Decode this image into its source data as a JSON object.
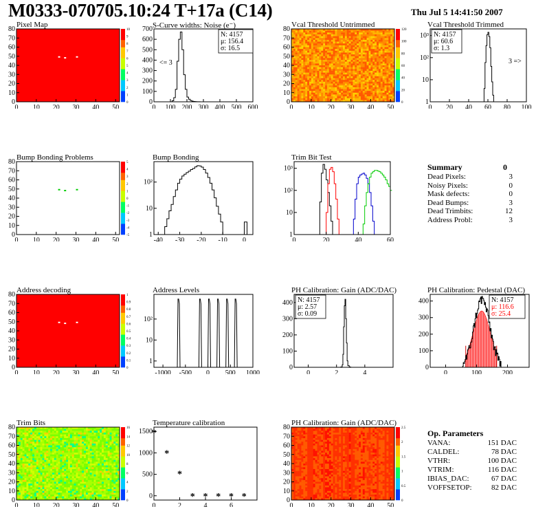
{
  "header": {
    "title": "M0333-070705.10:24 T+17a (C14)",
    "date": "Thu Jul  5 14:41:50 2007"
  },
  "colors": {
    "hist": "#000000",
    "red": "#ff0000",
    "blue": "#0000cc",
    "green": "#00cc00",
    "dark_red": "#cc0000"
  },
  "summary": {
    "title": "Summary",
    "value": "0",
    "rows": [
      {
        "label": "Dead Pixels:",
        "value": "3"
      },
      {
        "label": "Noisy Pixels:",
        "value": "0"
      },
      {
        "label": "Mask defects:",
        "value": "0"
      },
      {
        "label": "Dead Bumps:",
        "value": "3"
      },
      {
        "label": "Dead Trimbits:",
        "value": "12"
      },
      {
        "label": "Address Probl:",
        "value": "3"
      }
    ]
  },
  "op_params": {
    "title": "Op. Parameters",
    "rows": [
      {
        "label": "VANA:",
        "value": "151 DAC"
      },
      {
        "label": "CALDEL:",
        "value": "78 DAC"
      },
      {
        "label": "VTHR:",
        "value": "100 DAC"
      },
      {
        "label": "VTRIM:",
        "value": "116 DAC"
      },
      {
        "label": "IBIAS_DAC:",
        "value": "67 DAC"
      },
      {
        "label": "VOFFSETOP:",
        "value": "82 DAC"
      }
    ]
  },
  "chart_data": [
    {
      "id": "pixel-map",
      "type": "heatmap",
      "title": "Pixel Map",
      "xlim": [
        0,
        52
      ],
      "ylim": [
        0,
        80
      ],
      "xticks": [
        "0",
        "10",
        "20",
        "30",
        "40",
        "50"
      ],
      "yticks": [
        "0",
        "10",
        "20",
        "30",
        "40",
        "50",
        "60",
        "70",
        "80"
      ],
      "zticks": [
        "0",
        "1",
        "2",
        "3",
        "4",
        "5",
        "6",
        "7",
        "8",
        "9",
        "10"
      ],
      "fill": "uniform-red",
      "marks": [
        [
          21,
          50
        ],
        [
          24,
          49
        ],
        [
          30,
          50
        ]
      ]
    },
    {
      "id": "scurve",
      "type": "line",
      "title": "S-Curve widths: Noise (e⁻)",
      "xlim": [
        0,
        600
      ],
      "ylim": [
        0,
        700
      ],
      "xticks": [
        "0",
        "100",
        "200",
        "300",
        "400",
        "500",
        "600"
      ],
      "yticks": [
        "0",
        "100",
        "200",
        "300",
        "400",
        "500",
        "600",
        "700"
      ],
      "stats": [
        "N: 4157",
        "μ: 156.4",
        "σ: 16.5"
      ],
      "annotation": "<= 3",
      "x": [
        100,
        110,
        120,
        130,
        140,
        150,
        160,
        170,
        180,
        190,
        200,
        210,
        220,
        230,
        240,
        250,
        260,
        270,
        280,
        290
      ],
      "y": [
        0,
        10,
        40,
        120,
        390,
        600,
        670,
        500,
        260,
        120,
        45,
        25,
        12,
        6,
        3,
        2,
        1,
        1,
        0,
        0
      ]
    },
    {
      "id": "vcal-untrimmed",
      "type": "heatmap",
      "title": "Vcal Threshold Untrimmed",
      "xlim": [
        0,
        52
      ],
      "ylim": [
        0,
        80
      ],
      "xticks": [
        "0",
        "10",
        "20",
        "30",
        "40",
        "50"
      ],
      "yticks": [
        "0",
        "10",
        "20",
        "30",
        "40",
        "50",
        "60",
        "70",
        "80"
      ],
      "zticks": [
        "0",
        "20",
        "40",
        "60",
        "80",
        "100",
        "120"
      ],
      "fill": "noisy-orange"
    },
    {
      "id": "vcal-trimmed",
      "type": "line",
      "title": "Vcal Threshold Trimmed",
      "log_y": true,
      "xlim": [
        0,
        100
      ],
      "ylim": [
        1,
        2000
      ],
      "xticks": [
        "0",
        "20",
        "40",
        "60",
        "80",
        "100"
      ],
      "yticks": [
        "1",
        "10",
        "10²",
        "10³"
      ],
      "stats": [
        "N: 4157",
        "μ: 60.6",
        "σ:  1.3"
      ],
      "annotation": "3 =>",
      "x": [
        54,
        56,
        57,
        58,
        59,
        60,
        61,
        62,
        63,
        64,
        65,
        66
      ],
      "y": [
        1,
        4,
        60,
        350,
        1100,
        1400,
        900,
        280,
        40,
        8,
        2,
        1
      ]
    },
    {
      "id": "bump-map",
      "type": "heatmap",
      "title": "Bump Bonding Problems",
      "xlim": [
        0,
        52
      ],
      "ylim": [
        0,
        80
      ],
      "xticks": [
        "0",
        "10",
        "20",
        "30",
        "40",
        "50"
      ],
      "yticks": [
        "0",
        "10",
        "20",
        "30",
        "40",
        "50",
        "60",
        "70",
        "80"
      ],
      "zticks": [
        "-5",
        "-4",
        "-3",
        "-2",
        "-1",
        "0",
        "1",
        "2",
        "3",
        "4",
        "5"
      ],
      "fill": "white",
      "marks": [
        [
          21,
          50
        ],
        [
          24,
          49
        ],
        [
          30,
          50
        ]
      ]
    },
    {
      "id": "bump-bonding",
      "type": "line",
      "title": "Bump Bonding",
      "log_y": true,
      "xlim": [
        -42,
        4
      ],
      "ylim": [
        1,
        600
      ],
      "xticks": [
        "-40",
        "-30",
        "-20",
        "-10",
        "0"
      ],
      "yticks": [
        "1",
        "10",
        "10²"
      ],
      "x": [
        -38,
        -37,
        -36,
        -35,
        -34,
        -33,
        -32,
        -31,
        -30,
        -29,
        -28,
        -27,
        -26,
        -25,
        -24,
        -23,
        -22,
        -21,
        -20,
        -19,
        -18,
        -17,
        -16,
        -15,
        -14,
        -13,
        -12,
        -11,
        -10,
        -9
      ],
      "y": [
        1,
        2,
        4,
        8,
        14,
        28,
        50,
        90,
        130,
        170,
        200,
        230,
        260,
        300,
        330,
        380,
        420,
        410,
        370,
        300,
        220,
        150,
        90,
        50,
        25,
        12,
        6,
        3,
        1,
        1
      ],
      "extra_bins": [
        [
          0,
          3
        ]
      ]
    },
    {
      "id": "trim-bit",
      "type": "line",
      "title": "Trim Bit Test",
      "log_y": true,
      "xlim": [
        0,
        60
      ],
      "ylim": [
        1,
        2000
      ],
      "xticks": [
        "0",
        "20",
        "40",
        "60"
      ],
      "yticks": [
        "1",
        "10",
        "10²",
        "10³"
      ],
      "series": [
        {
          "color": "#000000",
          "x": [
            15,
            16,
            17,
            18,
            19,
            20,
            21,
            22,
            23,
            24
          ],
          "y": [
            1,
            30,
            600,
            1500,
            900,
            300,
            80,
            20,
            4,
            1
          ]
        },
        {
          "color": "#ff0000",
          "x": [
            19,
            20,
            21,
            22,
            23,
            24,
            25,
            26,
            27,
            28
          ],
          "y": [
            1,
            10,
            200,
            900,
            1100,
            700,
            200,
            40,
            5,
            1
          ]
        },
        {
          "color": "#0000cc",
          "x": [
            36,
            37,
            38,
            39,
            40,
            41,
            42,
            43,
            44,
            45,
            46,
            47,
            48,
            49,
            50
          ],
          "y": [
            1,
            5,
            40,
            200,
            400,
            500,
            550,
            600,
            500,
            350,
            200,
            80,
            20,
            4,
            1
          ]
        },
        {
          "color": "#00cc00",
          "x": [
            42,
            43,
            44,
            45,
            46,
            47,
            48,
            49,
            50,
            51,
            52,
            53,
            54,
            55,
            56,
            57,
            58,
            59,
            60
          ],
          "y": [
            1,
            3,
            20,
            80,
            200,
            400,
            600,
            700,
            800,
            800,
            750,
            700,
            600,
            500,
            400,
            300,
            200,
            150,
            100
          ]
        }
      ]
    },
    {
      "id": "address-map",
      "type": "heatmap",
      "title": "Address decoding",
      "xlim": [
        0,
        52
      ],
      "ylim": [
        0,
        80
      ],
      "xticks": [
        "0",
        "10",
        "20",
        "30",
        "40",
        "50"
      ],
      "yticks": [
        "0",
        "10",
        "20",
        "30",
        "40",
        "50",
        "60",
        "70",
        "80"
      ],
      "zticks": [
        "0",
        "0.1",
        "0.2",
        "0.3",
        "0.4",
        "0.5",
        "0.6",
        "0.7",
        "0.8",
        "0.9",
        "1"
      ],
      "fill": "uniform-red",
      "marks": [
        [
          21,
          50
        ],
        [
          24,
          49
        ],
        [
          30,
          50
        ]
      ]
    },
    {
      "id": "address-levels",
      "type": "line",
      "title": "Address Levels",
      "log_y": true,
      "xlim": [
        -1200,
        1000
      ],
      "ylim": [
        0.5,
        1500
      ],
      "xticks": [
        "-1000",
        "-500",
        "0",
        "500",
        "1000"
      ],
      "yticks": [
        "1",
        "10",
        "10²"
      ],
      "peaks": [
        -650,
        -170,
        30,
        230,
        430,
        620
      ],
      "peak_value": 900
    },
    {
      "id": "ph-gain",
      "type": "line",
      "title": "PH Calibration: Gain (ADC/DAC)",
      "xlim": [
        -1,
        6
      ],
      "ylim": [
        0,
        450
      ],
      "xticks": [
        "0",
        "2",
        "4"
      ],
      "yticks": [
        "0",
        "100",
        "200",
        "300",
        "400"
      ],
      "stats": [
        "N: 4157",
        "μ: 2.57",
        "σ: 0.09"
      ],
      "x": [
        2.2,
        2.3,
        2.4,
        2.45,
        2.5,
        2.55,
        2.6,
        2.65,
        2.7,
        2.75,
        2.8,
        2.9,
        3.0
      ],
      "y": [
        0,
        2,
        15,
        80,
        250,
        380,
        420,
        300,
        150,
        40,
        10,
        2,
        0
      ]
    },
    {
      "id": "ph-pedestal",
      "type": "line",
      "title": "PH Calibration: Pedestal (DAC)",
      "xlim": [
        -50,
        270
      ],
      "ylim": [
        0,
        440
      ],
      "xticks": [
        "0",
        "100",
        "200"
      ],
      "yticks": [
        "0",
        "100",
        "200",
        "300",
        "400"
      ],
      "stats": [
        "N: 4157",
        "μ: 116.6",
        "σ: 25.4"
      ],
      "fit_range": [
        65,
        165
      ]
    },
    {
      "id": "trim-bits-map",
      "type": "heatmap",
      "title": "Trim Bits",
      "xlim": [
        0,
        52
      ],
      "ylim": [
        0,
        80
      ],
      "xticks": [
        "0",
        "10",
        "20",
        "30",
        "40",
        "50"
      ],
      "yticks": [
        "0",
        "10",
        "20",
        "30",
        "40",
        "50",
        "60",
        "70",
        "80"
      ],
      "zticks": [
        "0",
        "2",
        "4",
        "6",
        "8",
        "10",
        "12",
        "14",
        "16"
      ],
      "fill": "noisy-green"
    },
    {
      "id": "temp-cal",
      "type": "scatter",
      "title": "Temperature calibration",
      "xlim": [
        0,
        8
      ],
      "ylim": [
        -100,
        1600
      ],
      "xticks": [
        "0",
        "2",
        "4",
        "6"
      ],
      "yticks": [
        "0",
        "500",
        "1000",
        "1500"
      ],
      "x": [
        0,
        1,
        2,
        3,
        4,
        5,
        6,
        7
      ],
      "y": [
        1480,
        1000,
        520,
        0,
        0,
        0,
        0,
        0
      ]
    },
    {
      "id": "ph-gain-map",
      "type": "heatmap",
      "title": "PH Calibration: Gain (ADC/DAC)",
      "xlim": [
        0,
        52
      ],
      "ylim": [
        0,
        80
      ],
      "xticks": [
        "0",
        "10",
        "20",
        "30",
        "40",
        "50"
      ],
      "yticks": [
        "0",
        "10",
        "20",
        "30",
        "40",
        "50",
        "60",
        "70",
        "80"
      ],
      "zticks": [
        "0",
        "0.5",
        "1",
        "1.5",
        "2",
        "2.5"
      ],
      "fill": "column-red"
    }
  ]
}
